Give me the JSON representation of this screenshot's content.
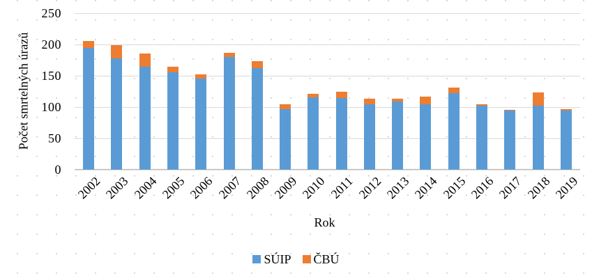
{
  "chart_data": {
    "type": "bar",
    "stacked": true,
    "title": "",
    "xlabel": "Rok",
    "ylabel": "Počet smrtelných úrazů",
    "categories": [
      "2002",
      "2003",
      "2004",
      "2005",
      "2006",
      "2007",
      "2008",
      "2009",
      "2010",
      "2011",
      "2012",
      "2013",
      "2014",
      "2015",
      "2016",
      "2017",
      "2018",
      "2019"
    ],
    "series": [
      {
        "name": "SÚIP",
        "color": "#5B9BD5",
        "values": [
          195,
          178,
          165,
          156,
          146,
          180,
          162,
          97,
          116,
          114,
          105,
          109,
          105,
          122,
          102,
          94,
          102,
          94
        ]
      },
      {
        "name": "ČBÚ",
        "color": "#ED7D31",
        "values": [
          11,
          21,
          21,
          8,
          6,
          7,
          11,
          7,
          5,
          11,
          8,
          4,
          12,
          9,
          2,
          2,
          21,
          3
        ]
      }
    ],
    "totals": [
      206,
      199,
      186,
      164,
      152,
      187,
      173,
      104,
      121,
      125,
      113,
      113,
      117,
      131,
      104,
      96,
      123,
      97
    ],
    "ylim": [
      0,
      250
    ],
    "yticks": [
      0,
      50,
      100,
      150,
      200,
      250
    ],
    "grid": "horizontal",
    "legend_position": "bottom",
    "colors": {
      "gridline": "#d9d9d9",
      "axis_line": "#c9c9c9",
      "text": "#000000"
    }
  }
}
